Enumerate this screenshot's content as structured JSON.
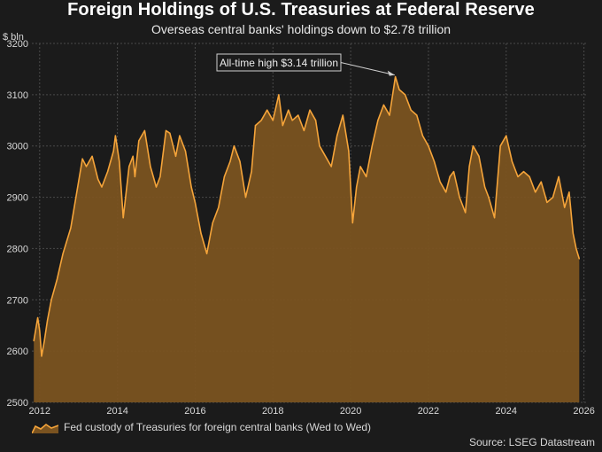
{
  "title": "Foreign Holdings of U.S. Treasuries at Federal Reserve",
  "subtitle": "Overseas central banks' holdings down to $2.78 trillion",
  "source": "Source: LSEG Datastream",
  "colors": {
    "background": "#1b1b1b",
    "series_line": "#f5a43a",
    "series_fill": "#7a5320",
    "grid": "#4a4a4a",
    "text": "#d8d8d8"
  },
  "chart_data": {
    "type": "area",
    "title": "Foreign Holdings of U.S. Treasuries at Federal Reserve",
    "subtitle": "Overseas central banks' holdings down to $2.78 trillion",
    "ylabel": "$ bln",
    "xlabel": "",
    "ylim": [
      2500,
      3200
    ],
    "xlim": [
      2011.8,
      2026.1
    ],
    "yticks": [
      2500,
      2600,
      2700,
      2800,
      2900,
      3000,
      3100,
      3200
    ],
    "xticks": [
      2012,
      2014,
      2016,
      2018,
      2020,
      2022,
      2024,
      2026
    ],
    "grid": true,
    "legend_position": "bottom-left",
    "annotation": {
      "text": "All-time high $3.14 trillion",
      "x": 2021.2,
      "y": 3135
    },
    "series": [
      {
        "name": "Fed custody of Treasuries for foreign central banks (Wed to Wed)",
        "x": [
          2011.85,
          2011.95,
          2012.0,
          2012.05,
          2012.12,
          2012.2,
          2012.3,
          2012.45,
          2012.6,
          2012.8,
          2013.0,
          2013.1,
          2013.2,
          2013.35,
          2013.5,
          2013.6,
          2013.75,
          2013.9,
          2013.95,
          2014.05,
          2014.15,
          2014.3,
          2014.4,
          2014.45,
          2014.55,
          2014.7,
          2014.85,
          2015.0,
          2015.1,
          2015.25,
          2015.35,
          2015.5,
          2015.6,
          2015.75,
          2015.9,
          2016.0,
          2016.15,
          2016.3,
          2016.45,
          2016.6,
          2016.75,
          2016.9,
          2017.0,
          2017.15,
          2017.3,
          2017.45,
          2017.55,
          2017.7,
          2017.85,
          2018.0,
          2018.15,
          2018.25,
          2018.4,
          2018.5,
          2018.65,
          2018.8,
          2018.95,
          2019.1,
          2019.2,
          2019.35,
          2019.5,
          2019.65,
          2019.8,
          2019.95,
          2020.05,
          2020.15,
          2020.25,
          2020.4,
          2020.55,
          2020.7,
          2020.85,
          2021.0,
          2021.15,
          2021.25,
          2021.4,
          2021.55,
          2021.7,
          2021.85,
          2022.0,
          2022.15,
          2022.3,
          2022.45,
          2022.55,
          2022.65,
          2022.8,
          2022.95,
          2023.05,
          2023.15,
          2023.3,
          2023.45,
          2023.55,
          2023.7,
          2023.85,
          2024.0,
          2024.15,
          2024.3,
          2024.45,
          2024.6,
          2024.75,
          2024.9,
          2025.05,
          2025.2,
          2025.35,
          2025.5,
          2025.62,
          2025.72,
          2025.8,
          2025.88
        ],
        "values": [
          2620,
          2665,
          2640,
          2590,
          2620,
          2660,
          2700,
          2740,
          2790,
          2840,
          2930,
          2975,
          2960,
          2980,
          2935,
          2920,
          2950,
          2990,
          3020,
          2970,
          2860,
          2960,
          2980,
          2940,
          3010,
          3030,
          2960,
          2920,
          2940,
          3030,
          3025,
          2980,
          3020,
          2990,
          2920,
          2890,
          2830,
          2790,
          2850,
          2880,
          2940,
          2970,
          3000,
          2970,
          2900,
          2950,
          3040,
          3050,
          3070,
          3050,
          3100,
          3040,
          3070,
          3050,
          3060,
          3030,
          3070,
          3050,
          3000,
          2980,
          2960,
          3020,
          3060,
          2990,
          2850,
          2920,
          2960,
          2940,
          3000,
          3050,
          3080,
          3060,
          3135,
          3110,
          3100,
          3070,
          3060,
          3020,
          3000,
          2970,
          2930,
          2910,
          2940,
          2950,
          2900,
          2870,
          2960,
          3000,
          2980,
          2920,
          2900,
          2860,
          3000,
          3020,
          2970,
          2940,
          2950,
          2940,
          2910,
          2930,
          2890,
          2900,
          2940,
          2880,
          2910,
          2830,
          2800,
          2780
        ]
      }
    ]
  }
}
